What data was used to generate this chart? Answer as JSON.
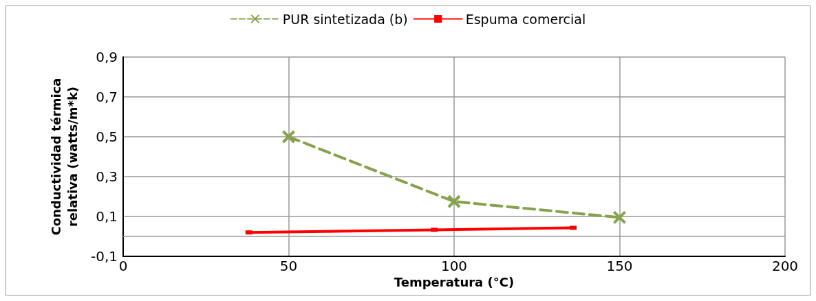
{
  "chart_data": {
    "type": "line",
    "xlabel": "Temperatura (°C)",
    "ylabel": "Conductividad térmica\nrelativa (watts/m*k)",
    "xlim": [
      0,
      200
    ],
    "xticks": [
      0,
      50,
      100,
      150,
      200
    ],
    "ylim": [
      -0.1,
      0.9
    ],
    "yticks": [
      {
        "value": -0.1,
        "label": "-0,1"
      },
      {
        "value": 0.1,
        "label": "0,1"
      },
      {
        "value": 0.3,
        "label": "0,3"
      },
      {
        "value": 0.5,
        "label": "0,5"
      },
      {
        "value": 0.7,
        "label": "0,7"
      },
      {
        "value": 0.9,
        "label": "0,9"
      }
    ],
    "grid": true,
    "legend": "top",
    "ref_lines": [
      {
        "axis": "y",
        "value": 0,
        "color": "#999999"
      }
    ],
    "series": [
      {
        "name": "PUR sintetizada (b)",
        "color": "#86a24a",
        "x": [
          50,
          100,
          150
        ],
        "values": [
          0.5,
          0.175,
          0.095
        ],
        "marker": "cross",
        "line_style": "dashed"
      },
      {
        "name": "Espuma comercial",
        "color": "#ff0000",
        "x": [
          38,
          94,
          136
        ],
        "values": [
          0.02,
          0.033,
          0.043
        ],
        "marker": "square",
        "line_style": "solid"
      }
    ]
  }
}
